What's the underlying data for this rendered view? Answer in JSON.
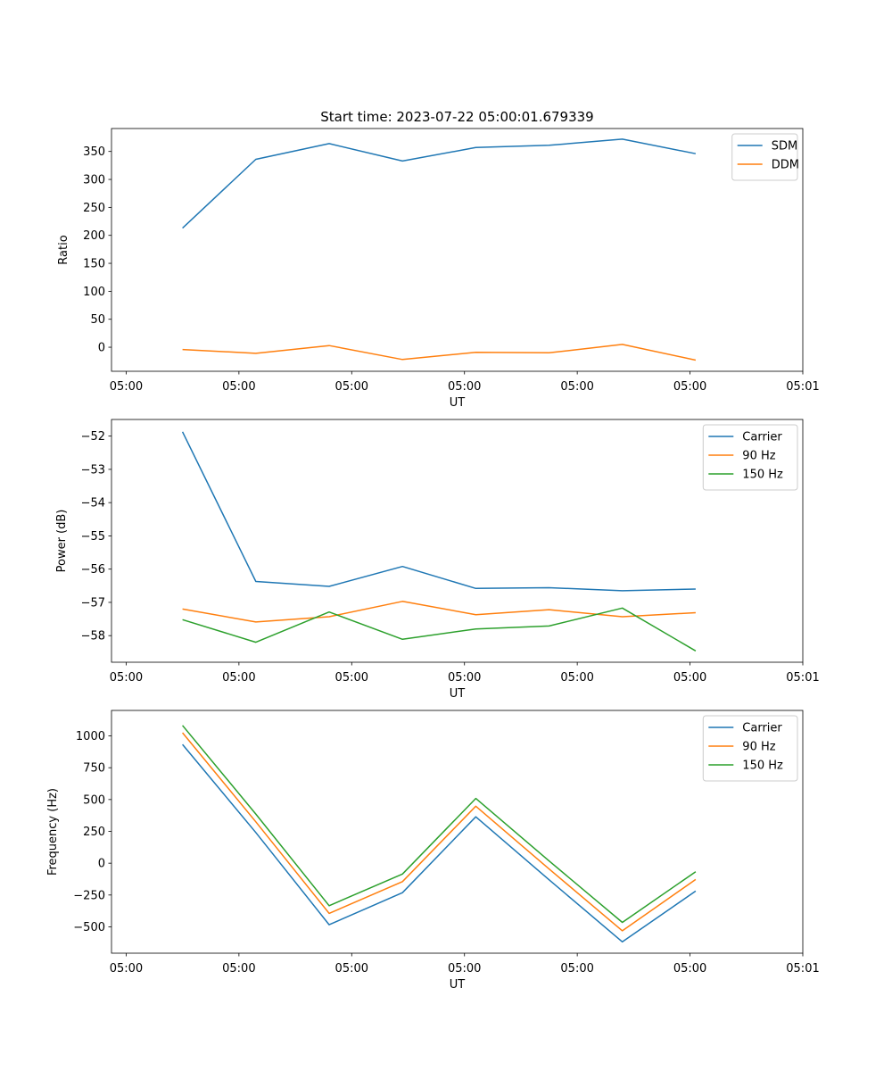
{
  "figure": {
    "title": "Start time: 2023-07-22 05:00:01.679339"
  },
  "colors": {
    "blue": "#1f77b4",
    "orange": "#ff7f0e",
    "green": "#2ca02c"
  },
  "chart_data": [
    {
      "type": "line",
      "title": "Start time: 2023-07-22 05:00:01.679339",
      "xlabel": "UT",
      "ylabel": "Ratio",
      "x_ticks": [
        0,
        1,
        2,
        3,
        4,
        5,
        6
      ],
      "x_tick_labels": [
        "05:00",
        "05:00",
        "05:00",
        "05:00",
        "05:00",
        "05:00",
        "05:01"
      ],
      "xlim": [
        -0.13,
        6.0
      ],
      "ylim": [
        -43,
        391
      ],
      "y_ticks": [
        0,
        50,
        100,
        150,
        200,
        250,
        300,
        350
      ],
      "y_tick_labels": [
        "0",
        "50",
        "100",
        "150",
        "200",
        "250",
        "300",
        "350"
      ],
      "x": [
        0.5,
        1.15,
        1.8,
        2.45,
        3.1,
        3.75,
        4.4,
        5.05
      ],
      "legend": "top-right",
      "series": [
        {
          "name": "SDM",
          "color": "#1f77b4",
          "values": [
            213,
            336,
            364,
            333,
            357,
            361,
            372,
            346
          ]
        },
        {
          "name": "DDM",
          "color": "#ff7f0e",
          "values": [
            -4,
            -11,
            3,
            -22,
            -9,
            -10,
            5,
            -23
          ]
        }
      ]
    },
    {
      "type": "line",
      "title": "",
      "xlabel": "UT",
      "ylabel": "Power (dB)",
      "x_ticks": [
        0,
        1,
        2,
        3,
        4,
        5,
        6
      ],
      "x_tick_labels": [
        "05:00",
        "05:00",
        "05:00",
        "05:00",
        "05:00",
        "05:00",
        "05:01"
      ],
      "xlim": [
        -0.13,
        6.0
      ],
      "ylim": [
        -58.8,
        -51.5
      ],
      "y_ticks": [
        -58,
        -57,
        -56,
        -55,
        -54,
        -53,
        -52
      ],
      "y_tick_labels": [
        "−58",
        "−57",
        "−56",
        "−55",
        "−54",
        "−53",
        "−52"
      ],
      "x": [
        0.5,
        1.15,
        1.8,
        2.45,
        3.1,
        3.75,
        4.4,
        5.05
      ],
      "legend": "top-right",
      "series": [
        {
          "name": "Carrier",
          "color": "#1f77b4",
          "values": [
            -51.87,
            -56.37,
            -56.52,
            -55.92,
            -56.58,
            -56.56,
            -56.65,
            -56.6
          ]
        },
        {
          "name": "90 Hz",
          "color": "#ff7f0e",
          "values": [
            -57.2,
            -57.59,
            -57.43,
            -56.97,
            -57.37,
            -57.22,
            -57.43,
            -57.31
          ]
        },
        {
          "name": "150 Hz",
          "color": "#2ca02c",
          "values": [
            -57.52,
            -58.2,
            -57.29,
            -58.11,
            -57.8,
            -57.71,
            -57.17,
            -58.46
          ]
        }
      ]
    },
    {
      "type": "line",
      "title": "",
      "xlabel": "UT",
      "ylabel": "Frequency (Hz)",
      "x_ticks": [
        0,
        1,
        2,
        3,
        4,
        5,
        6
      ],
      "x_tick_labels": [
        "05:00",
        "05:00",
        "05:00",
        "05:00",
        "05:00",
        "05:00",
        "05:01"
      ],
      "xlim": [
        -0.13,
        6.0
      ],
      "ylim": [
        -707,
        1200
      ],
      "y_ticks": [
        -500,
        -250,
        0,
        250,
        500,
        750,
        1000
      ],
      "y_tick_labels": [
        "−500",
        "−250",
        "0",
        "250",
        "500",
        "750",
        "1000"
      ],
      "x": [
        0.5,
        1.15,
        1.8,
        2.45,
        3.1,
        3.75,
        4.4,
        5.05
      ],
      "legend": "top-right",
      "series": [
        {
          "name": "Carrier",
          "color": "#1f77b4",
          "values": [
            933,
            241,
            -483,
            -232,
            364,
            -130,
            -618,
            -219
          ]
        },
        {
          "name": "90 Hz",
          "color": "#ff7f0e",
          "values": [
            1025,
            325,
            -394,
            -145,
            448,
            -45,
            -531,
            -128
          ]
        },
        {
          "name": "150 Hz",
          "color": "#2ca02c",
          "values": [
            1082,
            386,
            -334,
            -85,
            509,
            18,
            -465,
            -67
          ]
        }
      ]
    }
  ]
}
